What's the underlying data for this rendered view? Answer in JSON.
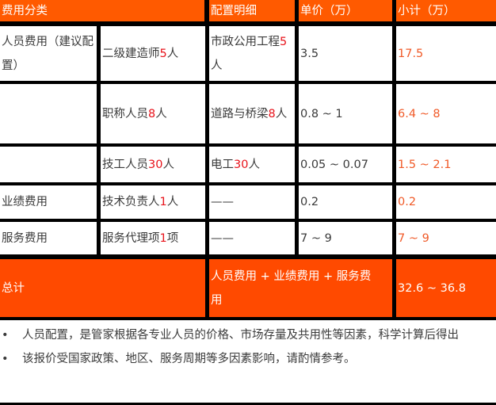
{
  "header": {
    "category": "费用分类",
    "detail": "配置明细",
    "unit_price": "单价（万）",
    "subtotal": "小计（万）"
  },
  "rows": [
    {
      "category": "人员费用（建议配置）",
      "item": [
        "二级建造师",
        "5",
        "人"
      ],
      "detail": [
        "市政公用工程",
        "5",
        "人"
      ],
      "unit_price": "3.5",
      "subtotal": "17.5"
    },
    {
      "category": "",
      "item": [
        "职称人员",
        "8",
        "人"
      ],
      "detail": [
        "道路与桥梁",
        "8",
        "人"
      ],
      "unit_price": "0.8 ~ 1",
      "subtotal": "6.4 ~ 8"
    },
    {
      "category": "",
      "item": [
        "技工人员",
        "30",
        "人"
      ],
      "detail": [
        "电工",
        "30",
        "人"
      ],
      "unit_price": "0.05 ~ 0.07",
      "subtotal": "1.5 ~ 2.1"
    },
    {
      "category": "业绩费用",
      "item": [
        "技术负责人",
        "1",
        "人"
      ],
      "detail": [
        "——",
        "",
        ""
      ],
      "unit_price": "0.2",
      "subtotal": "0.2"
    },
    {
      "category": "服务费用",
      "item": [
        "服务代理项",
        "1",
        "项"
      ],
      "detail": [
        "——",
        "",
        ""
      ],
      "unit_price": "7 ~ 9",
      "subtotal": "7 ~ 9"
    }
  ],
  "total": {
    "label": "总计",
    "formula": "人员费用 + 业绩费用 + 服务费用",
    "value": "32.6 ~ 36.8"
  },
  "notes": {
    "bullet": "•",
    "items": [
      "人员配置，是管家根据各专业人员的价格、市场存量及共用性等因素，科学计算后得出",
      "该报价受国家政策、地区、服务周期等多因素影响，请酌情参考。"
    ]
  },
  "colors": {
    "header_bg": "#ff5a00",
    "total_bg": "#ff4a00",
    "highlight_red": "#e8131b",
    "subtotal_orange": "#f05a28"
  }
}
